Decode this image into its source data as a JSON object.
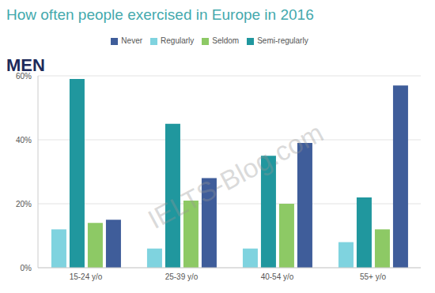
{
  "chart_data": {
    "type": "bar",
    "title": "How often people exercised in Europe in 2016",
    "subtitle": "MEN",
    "annotations": [
      "IELTS-Blog.com"
    ],
    "categories": [
      "15-24 y/o",
      "25-39 y/o",
      "40-54 y/o",
      "55+ y/o"
    ],
    "series": [
      {
        "name": "Regularly",
        "color": "#7fd3df",
        "values": [
          12,
          6,
          6,
          8
        ]
      },
      {
        "name": "Semi-regularly",
        "color": "#20979e",
        "values": [
          59,
          45,
          35,
          22
        ]
      },
      {
        "name": "Seldom",
        "color": "#8dc965",
        "values": [
          14,
          21,
          20,
          12
        ]
      },
      {
        "name": "Never",
        "color": "#3f5d9a",
        "values": [
          15,
          28,
          39,
          57
        ]
      }
    ],
    "ylim": [
      0,
      60
    ],
    "yticks": [
      {
        "value": 0,
        "label": "0%"
      },
      {
        "value": 20,
        "label": "20%"
      },
      {
        "value": 40,
        "label": "40%"
      },
      {
        "value": 60,
        "label": "60%"
      }
    ],
    "grid": true,
    "legend": "top"
  }
}
